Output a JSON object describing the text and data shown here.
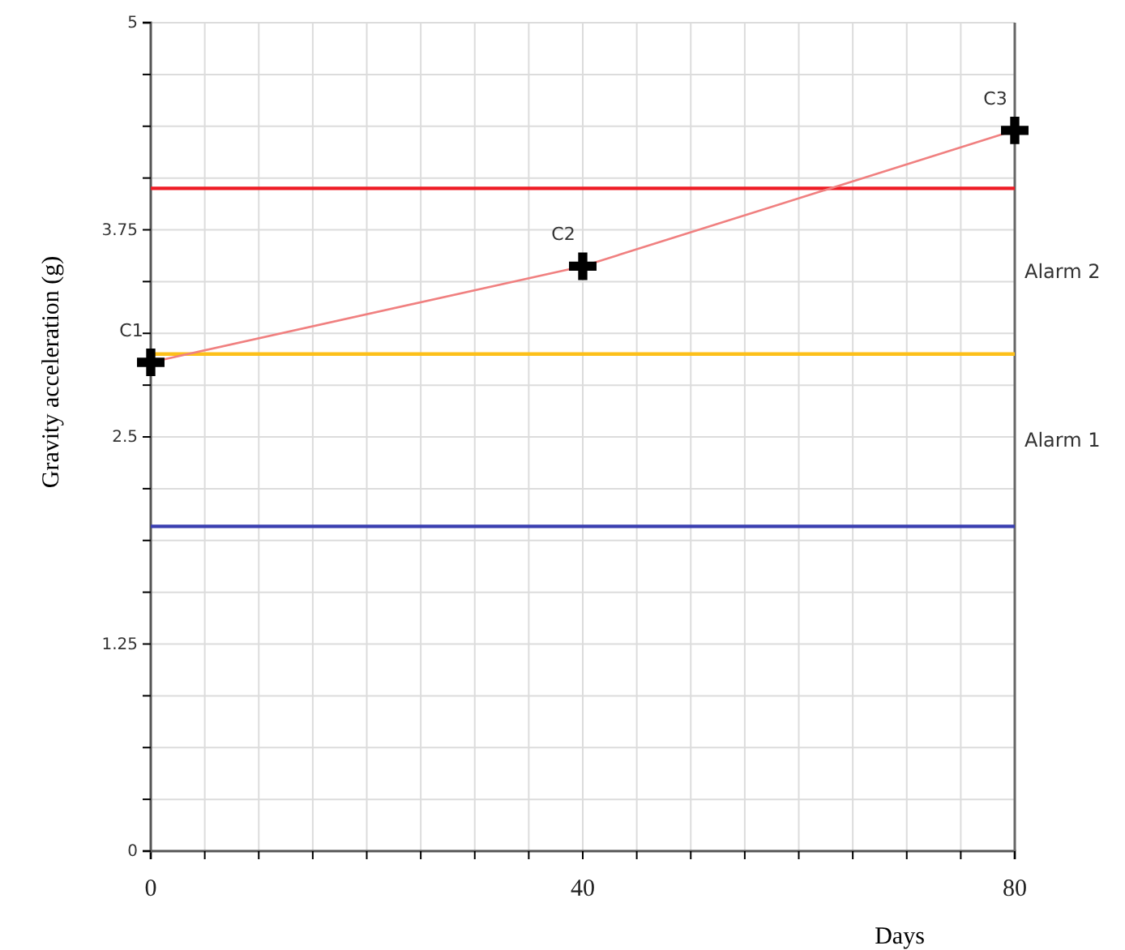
{
  "chart_data": {
    "type": "line",
    "xlabel": "Days",
    "ylabel": "Gravity acceleration (g)",
    "x": [
      0,
      40,
      80
    ],
    "series": [
      {
        "color": "#f08080",
        "values": [
          2.95,
          3.53,
          4.35
        ],
        "value_labels": [
          "C1",
          "C2",
          "C3"
        ]
      }
    ],
    "marker": "cross",
    "line_style": "solid",
    "grid": true,
    "xlim": [
      0,
      80
    ],
    "ylim": [
      0,
      5
    ],
    "xticks": [
      0,
      {
        "value": 5,
        "label": null
      },
      {
        "value": 10,
        "label": null
      },
      {
        "value": 15,
        "label": null
      },
      {
        "value": 20,
        "label": null
      },
      {
        "value": 25,
        "label": null
      },
      {
        "value": 30,
        "label": null
      },
      {
        "value": 35,
        "label": null
      },
      40,
      {
        "value": 45,
        "label": null
      },
      {
        "value": 50,
        "label": null
      },
      {
        "value": 55,
        "label": null
      },
      {
        "value": 60,
        "label": null
      },
      {
        "value": 65,
        "label": null
      },
      {
        "value": 70,
        "label": null
      },
      {
        "value": 75,
        "label": null
      },
      80
    ],
    "yticks": [
      0,
      {
        "value": 0.3125,
        "label": null
      },
      {
        "value": 0.625,
        "label": null
      },
      {
        "value": 0.9375,
        "label": null
      },
      1.25,
      {
        "value": 1.5625,
        "label": null
      },
      {
        "value": 1.875,
        "label": null
      },
      {
        "value": 2.1875,
        "label": null
      },
      2.5,
      {
        "value": 2.8125,
        "label": null
      },
      {
        "value": 3.125,
        "label": null
      },
      {
        "value": 3.4375,
        "label": null
      },
      3.75,
      {
        "value": 4.0625,
        "label": null
      },
      {
        "value": 4.375,
        "label": null
      },
      {
        "value": 4.6875,
        "label": null
      },
      5
    ],
    "ref_lines": [
      {
        "axis": "y",
        "value": 4,
        "color": "#ee1c25"
      },
      {
        "axis": "y",
        "value": 3,
        "color": "#fdc01a"
      },
      {
        "axis": "y",
        "value": 1.96,
        "color": "#3a3fb0"
      }
    ],
    "annotations": [
      "Alarm 2",
      "Alarm 1"
    ]
  }
}
